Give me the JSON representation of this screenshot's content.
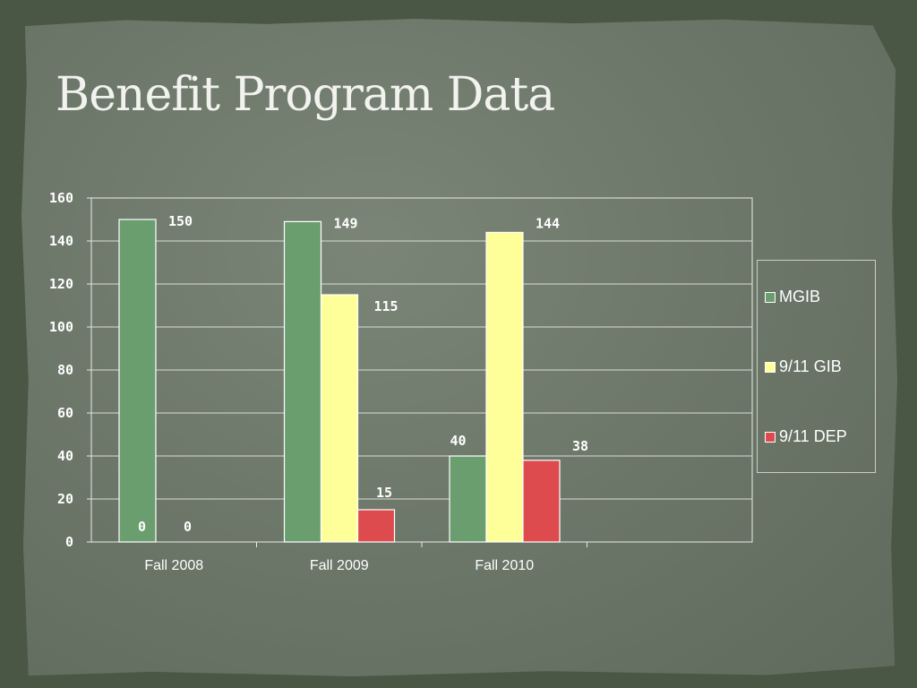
{
  "slide": {
    "title": "Benefit Program Data"
  },
  "colors": {
    "MGIB": "#6a9e6f",
    "9/11 GIB": "#ffff99",
    "9/11 DEP": "#dd4b4e"
  },
  "chart_data": {
    "type": "bar",
    "categories": [
      "Fall 2008",
      "Fall 2009",
      "Fall 2010"
    ],
    "series": [
      {
        "name": "MGIB",
        "values": [
          150,
          149,
          40
        ],
        "labels": [
          "150",
          "149",
          "40"
        ]
      },
      {
        "name": "9/11 GIB",
        "values": [
          0,
          115,
          144
        ],
        "labels": [
          "0",
          "115",
          "144"
        ]
      },
      {
        "name": "9/11 DEP",
        "values": [
          0,
          15,
          38
        ],
        "labels": [
          "0",
          "15",
          "38"
        ]
      }
    ],
    "yticks": [
      "0",
      "20",
      "40",
      "60",
      "80",
      "100",
      "120",
      "140",
      "160"
    ],
    "ylim": [
      0,
      160
    ],
    "grid": true,
    "legend_position": "right"
  }
}
